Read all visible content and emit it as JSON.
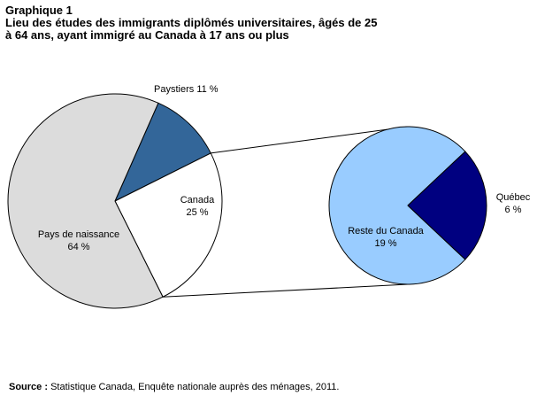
{
  "title_line1": "Graphique 1",
  "title_line2": "Lieu des études des immigrants diplômés universitaires, âgés de 25",
  "title_line3": "à 64 ans, ayant immigré au Canada à 17 ans ou plus",
  "source_label": "Source :",
  "source_text": " Statistique Canada, Enquête nationale auprès des ménages, 2011.",
  "chart_data": [
    {
      "type": "pie",
      "title": "",
      "slices": [
        {
          "name": "Pays de naissance",
          "value": 64,
          "value_label": "64 %",
          "color": "#dcdcdc"
        },
        {
          "name": "Paystiers",
          "value": 11,
          "value_label": "11 %",
          "color": "#336699"
        },
        {
          "name": "Canada",
          "value": 25,
          "value_label": "25 %",
          "color": "#ffffff"
        }
      ]
    },
    {
      "type": "pie",
      "title": "",
      "breakdown_of": "Canada",
      "slices": [
        {
          "name": "Reste du Canada",
          "value": 19,
          "value_label": "19 %",
          "color": "#99ccff"
        },
        {
          "name": "Québec",
          "value": 6,
          "value_label": "6 %",
          "color": "#000080"
        }
      ]
    }
  ]
}
